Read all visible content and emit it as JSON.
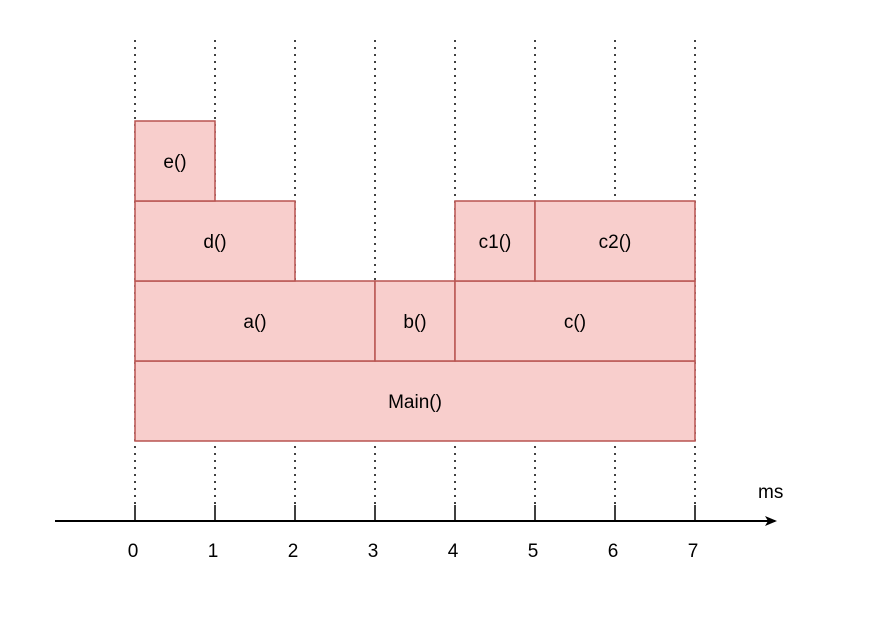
{
  "diagram": {
    "unit_label": "ms",
    "ticks": [
      "0",
      "1",
      "2",
      "3",
      "4",
      "5",
      "6",
      "7"
    ],
    "colors": {
      "block_fill": "#f8cecc",
      "block_stroke": "#b85450",
      "axis": "#000000",
      "gridline": "#000000"
    },
    "frames": [
      {
        "id": "main",
        "label": "Main()",
        "start": 0,
        "end": 7,
        "depth": 0
      },
      {
        "id": "a",
        "label": "a()",
        "start": 0,
        "end": 3,
        "depth": 1
      },
      {
        "id": "b",
        "label": "b()",
        "start": 3,
        "end": 4,
        "depth": 1
      },
      {
        "id": "c",
        "label": "c()",
        "start": 4,
        "end": 7,
        "depth": 1
      },
      {
        "id": "d",
        "label": "d()",
        "start": 0,
        "end": 2,
        "depth": 2
      },
      {
        "id": "c1",
        "label": "c1()",
        "start": 4,
        "end": 5,
        "depth": 2
      },
      {
        "id": "c2",
        "label": "c2()",
        "start": 5,
        "end": 7,
        "depth": 2
      },
      {
        "id": "e",
        "label": "e()",
        "start": 0,
        "end": 1,
        "depth": 3
      }
    ]
  }
}
